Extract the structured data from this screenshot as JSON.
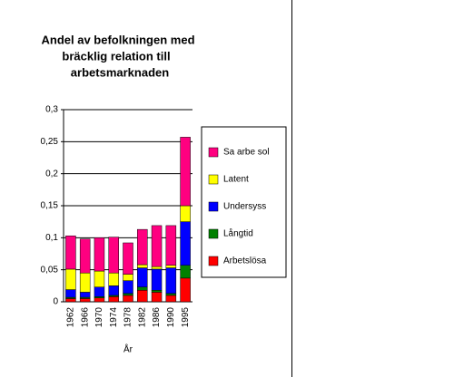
{
  "chart_data": {
    "type": "stacked-bar",
    "title_lines": [
      "Andel av befolkningen med",
      "bräcklig relation till",
      "arbetsmarknaden"
    ],
    "x_label": "År",
    "categories": [
      "1962",
      "1966",
      "1970",
      "1974",
      "1978",
      "1982",
      "1986",
      "1990",
      "1995"
    ],
    "series": [
      {
        "name": "Arbetslösa",
        "color": "#ff0000",
        "values": [
          0.005,
          0.005,
          0.006,
          0.008,
          0.01,
          0.018,
          0.015,
          0.01,
          0.037
        ]
      },
      {
        "name": "Långtid",
        "color": "#008000",
        "values": [
          0.002,
          0.002,
          0.002,
          0.002,
          0.003,
          0.005,
          0.003,
          0.003,
          0.02
        ]
      },
      {
        "name": "Undersyss",
        "color": "#0000ff",
        "values": [
          0.012,
          0.008,
          0.015,
          0.015,
          0.02,
          0.03,
          0.033,
          0.04,
          0.068
        ]
      },
      {
        "name": "Latent",
        "color": "#ffff00",
        "values": [
          0.032,
          0.03,
          0.025,
          0.02,
          0.01,
          0.005,
          0.004,
          0.004,
          0.025
        ]
      },
      {
        "name": "Sa arbe sol",
        "color": "#ff0080",
        "values": [
          0.052,
          0.053,
          0.052,
          0.056,
          0.049,
          0.055,
          0.064,
          0.062,
          0.107
        ]
      }
    ],
    "ylim": [
      0,
      0.3
    ],
    "yticks": [
      {
        "value": 0,
        "label": "0"
      },
      {
        "value": 0.05,
        "label": "0,05"
      },
      {
        "value": 0.1,
        "label": "0,1"
      },
      {
        "value": 0.15,
        "label": "0,15"
      },
      {
        "value": 0.2,
        "label": "0,2"
      },
      {
        "value": 0.25,
        "label": "0,25"
      },
      {
        "value": 0.3,
        "label": "0,3"
      }
    ],
    "grid": true
  }
}
